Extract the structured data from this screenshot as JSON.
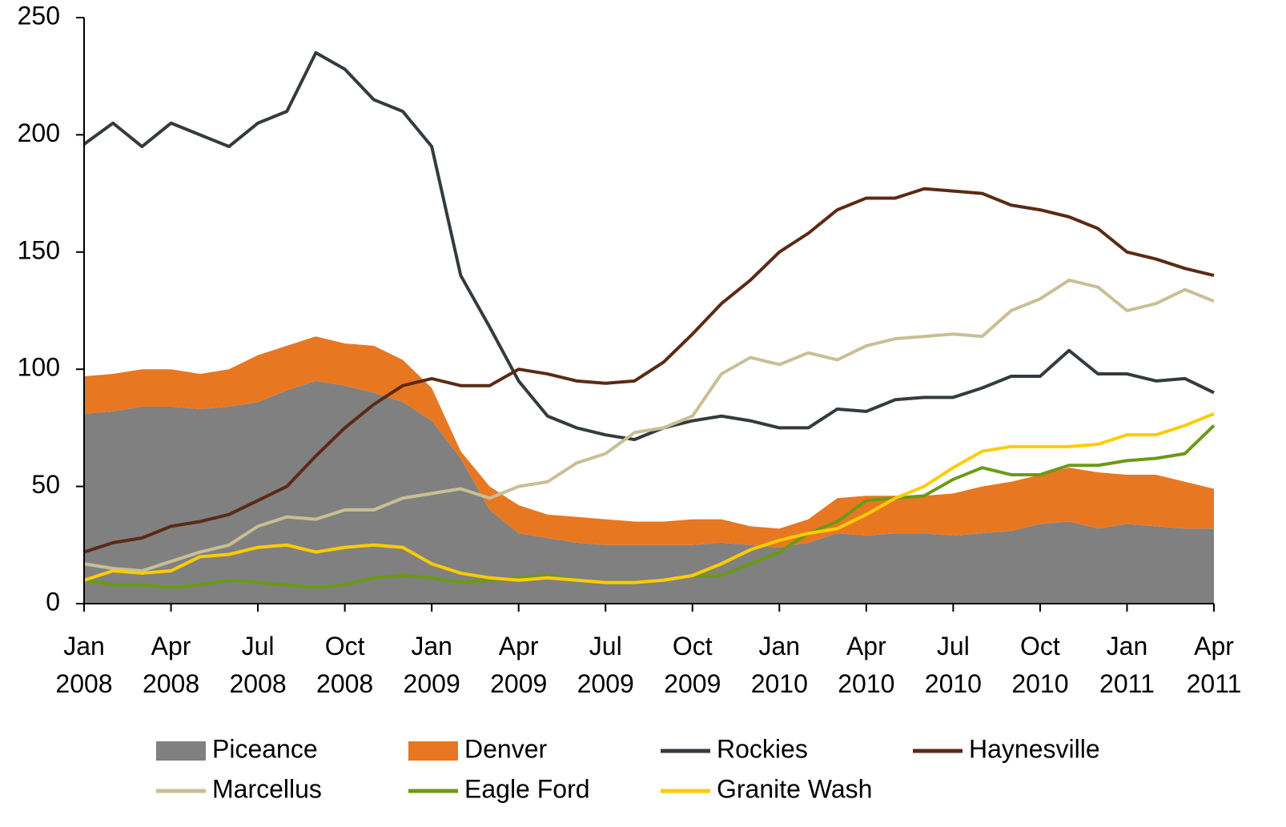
{
  "chart_data": {
    "type": "line",
    "categories": [
      "Jan 2008",
      null,
      null,
      "Apr 2008",
      null,
      null,
      "Jul 2008",
      null,
      null,
      "Oct 2008",
      null,
      null,
      "Jan 2009",
      null,
      null,
      "Apr 2009",
      null,
      null,
      "Jul 2009",
      null,
      null,
      "Oct 2009",
      null,
      null,
      "Jan 2010",
      null,
      null,
      "Apr 2010",
      null,
      null,
      "Jul 2010",
      null,
      null,
      "Oct 2010",
      null,
      null,
      "Jan 2011",
      null,
      null,
      "Apr 2011"
    ],
    "ylim": [
      0,
      250
    ],
    "yticks": [
      0,
      50,
      100,
      150,
      200,
      250
    ],
    "grid": false,
    "legend": "bottom",
    "series": [
      {
        "name": "Piceance",
        "type": "area",
        "stacked": true,
        "color": "#808080",
        "values": [
          81,
          82,
          84,
          84,
          83,
          84,
          86,
          91,
          95,
          93,
          90,
          86,
          78,
          62,
          40,
          30,
          28,
          26,
          25,
          25,
          25,
          25,
          26,
          25,
          24,
          26,
          30,
          29,
          30,
          30,
          29,
          30,
          31,
          34,
          35,
          32,
          34,
          33,
          32,
          32
        ]
      },
      {
        "name": "Denver",
        "type": "area",
        "stacked": true,
        "color": "#e87722",
        "values": [
          16,
          16,
          16,
          16,
          15,
          16,
          20,
          19,
          19,
          18,
          20,
          18,
          14,
          3,
          10,
          12,
          10,
          11,
          11,
          10,
          10,
          11,
          10,
          8,
          8,
          10,
          15,
          17,
          16,
          16,
          18,
          20,
          21,
          21,
          23,
          24,
          21,
          22,
          20,
          17
        ]
      },
      {
        "name": "Rockies",
        "type": "line",
        "color": "#333b3f",
        "values": [
          196,
          205,
          195,
          205,
          200,
          195,
          205,
          210,
          235,
          228,
          215,
          210,
          195,
          140,
          118,
          95,
          80,
          75,
          72,
          70,
          75,
          78,
          80,
          78,
          75,
          75,
          83,
          82,
          87,
          88,
          88,
          92,
          97,
          97,
          108,
          98,
          98,
          95,
          96,
          90
        ]
      },
      {
        "name": "Haynesville",
        "type": "line",
        "color": "#5b2a14",
        "values": [
          22,
          26,
          28,
          33,
          35,
          38,
          44,
          50,
          63,
          75,
          85,
          93,
          96,
          93,
          93,
          100,
          98,
          95,
          94,
          95,
          103,
          115,
          128,
          138,
          150,
          158,
          168,
          173,
          173,
          177,
          176,
          175,
          170,
          168,
          165,
          160,
          150,
          147,
          143,
          140
        ]
      },
      {
        "name": "Marcellus",
        "type": "line",
        "color": "#c9bf94",
        "values": [
          17,
          15,
          14,
          18,
          22,
          25,
          33,
          37,
          36,
          40,
          40,
          45,
          47,
          49,
          45,
          50,
          52,
          60,
          64,
          73,
          75,
          80,
          98,
          105,
          102,
          107,
          104,
          110,
          113,
          114,
          115,
          114,
          125,
          130,
          138,
          135,
          125,
          128,
          134,
          129
        ]
      },
      {
        "name": "Eagle Ford",
        "type": "line",
        "color": "#6b9a16",
        "values": [
          10,
          8,
          8,
          7,
          8,
          10,
          9,
          8,
          7,
          8,
          11,
          12,
          11,
          9,
          10,
          11,
          12,
          10,
          9,
          9,
          10,
          12,
          12,
          17,
          22,
          30,
          35,
          44,
          45,
          46,
          53,
          58,
          55,
          55,
          59,
          59,
          61,
          62,
          64,
          76
        ]
      },
      {
        "name": "Granite Wash",
        "type": "line",
        "color": "#ffcc00",
        "values": [
          10,
          14,
          13,
          14,
          20,
          21,
          24,
          25,
          22,
          24,
          25,
          24,
          17,
          13,
          11,
          10,
          11,
          10,
          9,
          9,
          10,
          12,
          17,
          23,
          27,
          30,
          32,
          38,
          45,
          50,
          58,
          65,
          67,
          67,
          67,
          68,
          72,
          72,
          76,
          81
        ]
      }
    ]
  }
}
